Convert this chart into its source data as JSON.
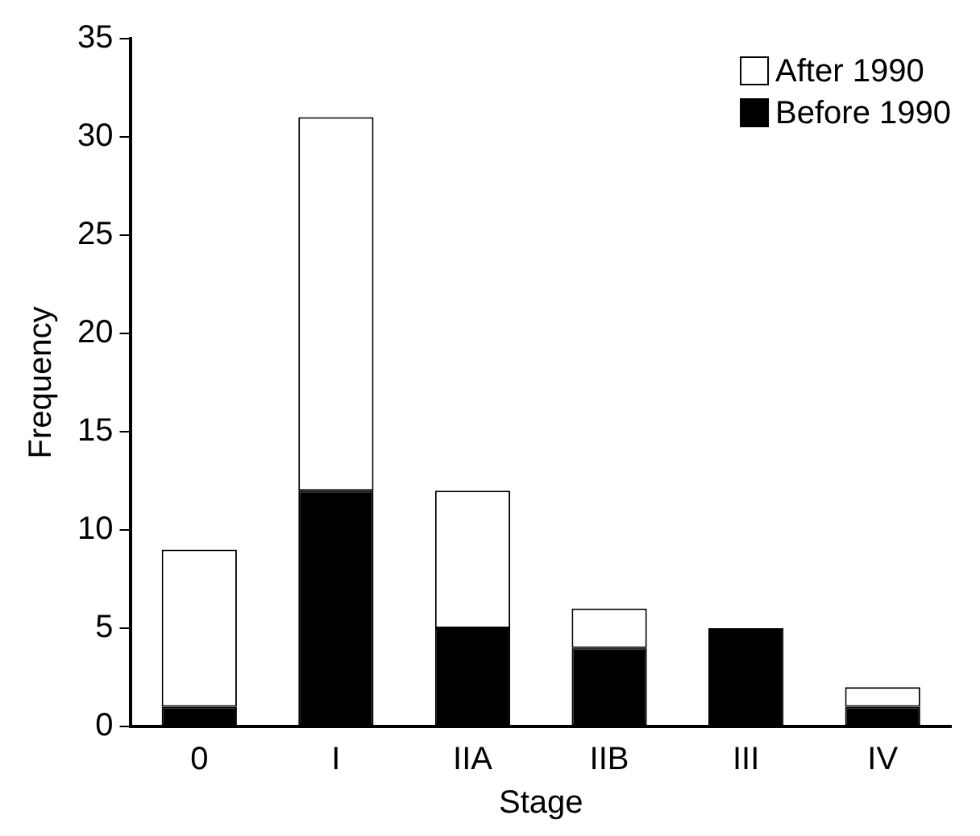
{
  "chart_data": {
    "type": "bar",
    "xlabel": "Stage",
    "ylabel": "Frequency",
    "categories": [
      "0",
      "I",
      "IIA",
      "IIB",
      "III",
      "IV"
    ],
    "series": [
      {
        "name": "Before 1990",
        "color": "#000000",
        "values": [
          1,
          12,
          5,
          4,
          5,
          1
        ]
      },
      {
        "name": "After 1990",
        "color": "#ffffff",
        "values": [
          8,
          19,
          7,
          2,
          0,
          1
        ]
      }
    ],
    "stacked": true,
    "ylim": [
      0,
      35
    ],
    "yticks": [
      0,
      5,
      10,
      15,
      20,
      25,
      30,
      35
    ],
    "grid": false,
    "legend": "top right"
  }
}
